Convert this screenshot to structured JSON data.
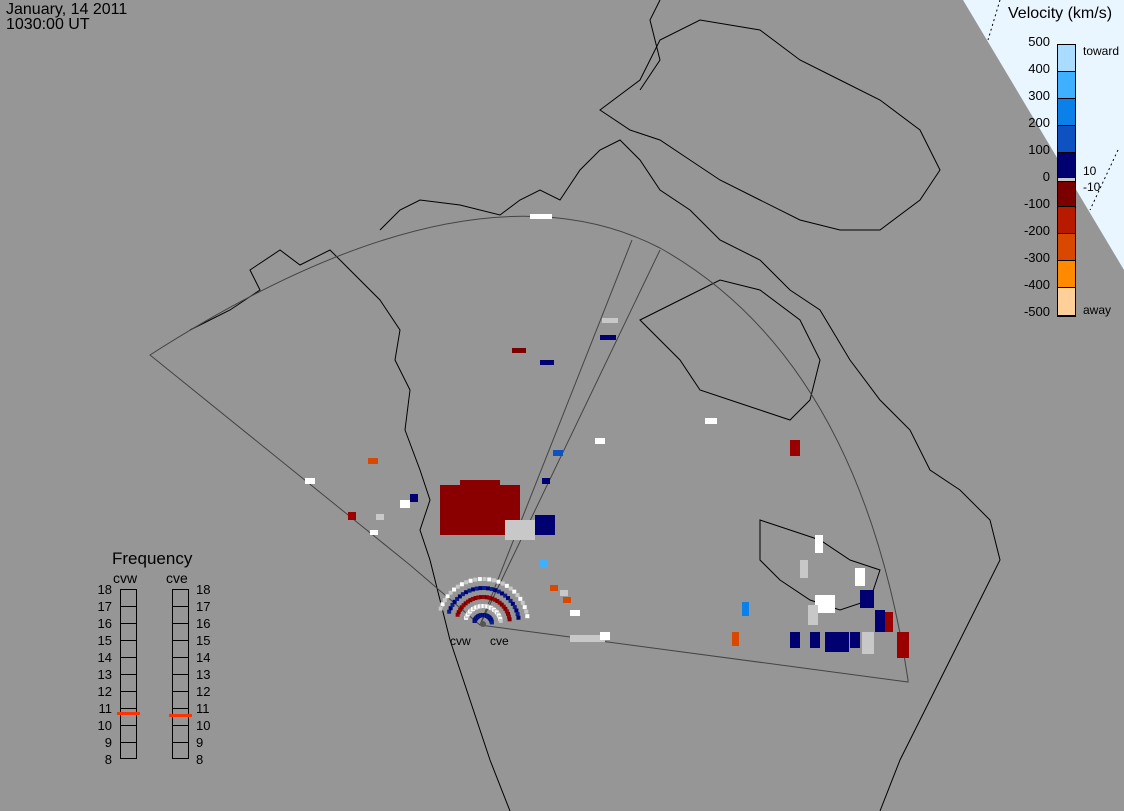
{
  "header": {
    "date": "January, 14 2011",
    "time": "1030:00 UT"
  },
  "velocity_legend": {
    "title": "Velocity (km/s)",
    "ticks": [
      "500",
      "400",
      "300",
      "200",
      "100",
      "0",
      "-100",
      "-200",
      "-300",
      "-400",
      "-500"
    ],
    "toward_label": "toward",
    "away_label": "away",
    "near_zero_labels": [
      "10",
      "-10"
    ],
    "colors": [
      "#a9dcff",
      "#3fb0ff",
      "#0b80e8",
      "#0d52c0",
      "#06208f",
      "#000070",
      "#c8c8c8",
      "#7a0000",
      "#9a0000",
      "#b81a00",
      "#d84800",
      "#ff8a00",
      "#ffcf99"
    ]
  },
  "frequency_panel": {
    "title": "Frequency",
    "radars": [
      {
        "name": "cvw",
        "frequency_mhz": 10.7
      },
      {
        "name": "cve",
        "frequency_mhz": 10.6
      }
    ],
    "ticks": [
      "18",
      "17",
      "16",
      "15",
      "14",
      "13",
      "12",
      "11",
      "10",
      "9",
      "8"
    ],
    "marker_color": "#ff3300"
  },
  "map": {
    "radar_labels": [
      "cvw",
      "cve"
    ],
    "background": "#969696",
    "land_outline": "#000000"
  }
}
